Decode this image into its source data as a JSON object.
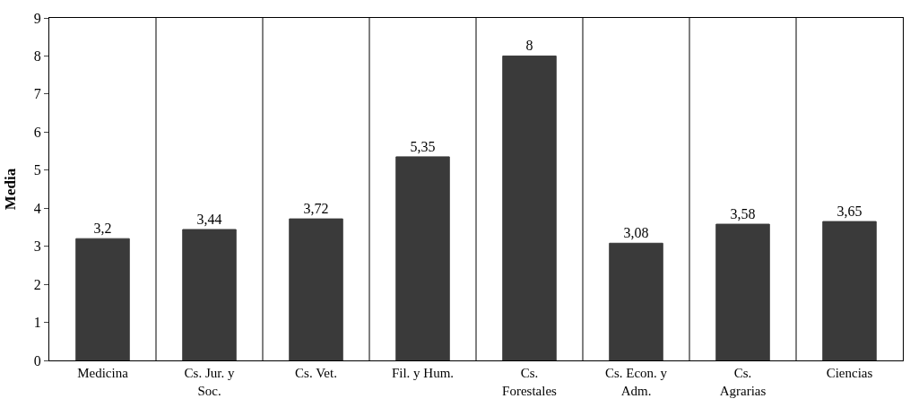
{
  "chart_data": {
    "type": "bar",
    "ylabel": "Media",
    "categories": [
      "Medicina",
      "Cs. Jur. y Soc.",
      "Cs. Vet.",
      "Fil. y Hum.",
      "Cs. Forestales",
      "Cs. Econ. y Adm.",
      "Cs. Agrarias",
      "Ciencias"
    ],
    "values": [
      3.2,
      3.44,
      3.72,
      5.35,
      8,
      3.08,
      3.58,
      3.65
    ],
    "value_labels": [
      "3,2",
      "3,44",
      "3,72",
      "5,35",
      "8",
      "3,08",
      "3,58",
      "3,65"
    ],
    "color": "#3a3a3a",
    "ylim": [
      0,
      9
    ],
    "yticks": [
      0,
      1,
      2,
      3,
      4,
      5,
      6,
      7,
      8,
      9
    ],
    "grid": "x"
  }
}
